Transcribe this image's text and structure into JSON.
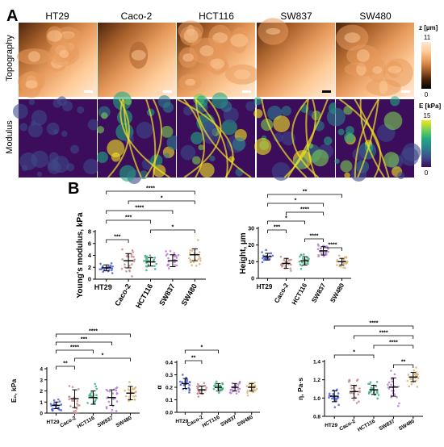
{
  "panel_a": {
    "letter": "A",
    "columns": [
      "HT29",
      "Caco-2",
      "HCT116",
      "SW837",
      "SW480"
    ],
    "row_labels": [
      "Topography",
      "Modulus"
    ],
    "topo_scale": {
      "unit": "z [µm]",
      "max": "11",
      "min": "0"
    },
    "mod_scale": {
      "unit": "E [kPa]",
      "max": "15",
      "min": "0"
    },
    "topo_colors": [
      "#000000",
      "#4a230c",
      "#a8612b",
      "#e79a5c",
      "#ffcc99",
      "#ffe9d6"
    ],
    "mod_colors": [
      "#3b0d5b",
      "#3e4a8a",
      "#2d7e8c",
      "#22a884",
      "#7ad151",
      "#f5e61e"
    ]
  },
  "panel_b": {
    "letter": "B"
  },
  "colors": {
    "HT29": "#4d5fd6",
    "Caco-2": "#c48a8a",
    "HCT116": "#3fb080",
    "SW837": "#b57ccc",
    "SW480": "#d9b372"
  },
  "chart_data": [
    {
      "type": "scatter",
      "ylabel": "Young's modulus, kPa",
      "categories": [
        "HT29",
        "Caco-2",
        "HCT116",
        "SW837",
        "SW480"
      ],
      "ylim": [
        0,
        8
      ],
      "yticks": [
        "0",
        "2",
        "4",
        "6",
        "8"
      ],
      "means": [
        1.9,
        3.1,
        2.9,
        3.1,
        4.1
      ],
      "sd": [
        0.5,
        1.2,
        0.7,
        1.0,
        1.0
      ],
      "sig": [
        {
          "from": 0,
          "to": 4,
          "label": "****"
        },
        {
          "from": 1,
          "to": 4,
          "label": "*"
        },
        {
          "from": 0,
          "to": 3,
          "label": "****"
        },
        {
          "from": 0,
          "to": 2,
          "label": "***"
        },
        {
          "from": 2,
          "to": 4,
          "label": "*"
        },
        {
          "from": 0,
          "to": 1,
          "label": "***"
        }
      ]
    },
    {
      "type": "scatter",
      "ylabel": "Height, µm",
      "categories": [
        "HT29",
        "Caco-2",
        "HCT116",
        "SW837",
        "SW480"
      ],
      "ylim": [
        0,
        30
      ],
      "yticks": [
        "0",
        "10",
        "20",
        "30"
      ],
      "means": [
        13,
        9,
        10.5,
        16.5,
        10
      ],
      "sd": [
        2,
        3,
        2.5,
        2.5,
        2
      ],
      "sig": [
        {
          "from": 0,
          "to": 4,
          "label": "**"
        },
        {
          "from": 0,
          "to": 3,
          "label": "*"
        },
        {
          "from": 1,
          "to": 3,
          "label": "****"
        },
        {
          "from": 0,
          "to": 2,
          "label": "*"
        },
        {
          "from": 0,
          "to": 1,
          "label": "***"
        },
        {
          "from": 2,
          "to": 3,
          "label": "****"
        },
        {
          "from": 3,
          "to": 4,
          "label": "****"
        }
      ]
    },
    {
      "type": "scatter",
      "ylabel": "E₀, kPa",
      "categories": [
        "HT29",
        "Caco-2",
        "HCT116",
        "SW837",
        "SW480"
      ],
      "ylim": [
        0,
        4
      ],
      "yticks": [
        "0",
        "1",
        "2",
        "3",
        "4"
      ],
      "means": [
        0.7,
        1.3,
        1.4,
        1.4,
        1.8
      ],
      "sd": [
        0.3,
        0.8,
        0.6,
        0.7,
        0.6
      ],
      "sig": [
        {
          "from": 0,
          "to": 4,
          "label": "****"
        },
        {
          "from": 0,
          "to": 3,
          "label": "***"
        },
        {
          "from": 0,
          "to": 2,
          "label": "****"
        },
        {
          "from": 1,
          "to": 4,
          "label": "*"
        },
        {
          "from": 0,
          "to": 1,
          "label": "**"
        }
      ]
    },
    {
      "type": "scatter",
      "ylabel": "α",
      "categories": [
        "HT29",
        "Caco-2",
        "HCT116",
        "SW837",
        "SW480"
      ],
      "ylim": [
        0,
        0.4
      ],
      "yticks": [
        "0.0",
        "0.1",
        "0.2",
        "0.3",
        "0.4"
      ],
      "means": [
        0.23,
        0.18,
        0.2,
        0.2,
        0.2
      ],
      "sd": [
        0.04,
        0.03,
        0.03,
        0.03,
        0.03
      ],
      "sig": [
        {
          "from": 0,
          "to": 2,
          "label": "*"
        },
        {
          "from": 0,
          "to": 1,
          "label": "**"
        }
      ]
    },
    {
      "type": "scatter",
      "ylabel": "η, Pa·s",
      "categories": [
        "HT29",
        "Caco-2",
        "HCT116",
        "SW837",
        "SW480"
      ],
      "ylim": [
        0.8,
        1.4
      ],
      "yticks": [
        "0.8",
        "1.0",
        "1.2",
        "1.4"
      ],
      "means": [
        1.02,
        1.07,
        1.09,
        1.12,
        1.23
      ],
      "sd": [
        0.06,
        0.07,
        0.05,
        0.1,
        0.05
      ],
      "sig": [
        {
          "from": 0,
          "to": 4,
          "label": "****"
        },
        {
          "from": 1,
          "to": 4,
          "label": "****"
        },
        {
          "from": 2,
          "to": 4,
          "label": "****"
        },
        {
          "from": 0,
          "to": 2,
          "label": "*"
        },
        {
          "from": 3,
          "to": 4,
          "label": "**"
        }
      ]
    }
  ]
}
